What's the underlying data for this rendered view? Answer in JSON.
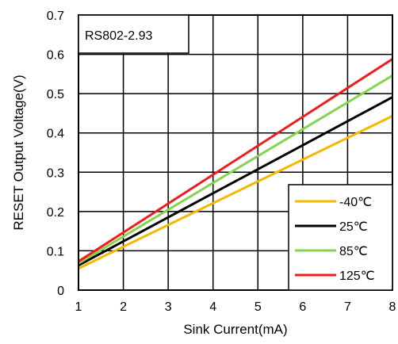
{
  "chart_data": {
    "type": "line",
    "annotation": "RS802-2.93",
    "xlabel": "Sink Current(mA)",
    "ylabel": "RESET Output Voltage(V)",
    "xlim": [
      1,
      8
    ],
    "ylim": [
      0,
      0.7
    ],
    "x_ticks": [
      "1",
      "2",
      "3",
      "4",
      "5",
      "6",
      "7",
      "8"
    ],
    "y_ticks": [
      "0",
      "0.1",
      "0.2",
      "0.3",
      "0.4",
      "0.5",
      "0.6",
      "0.7"
    ],
    "grid": true,
    "legend_position": "bottom-right",
    "series": [
      {
        "name": "-40℃",
        "color": "#f5b800",
        "x": [
          1,
          8
        ],
        "y": [
          0.055,
          0.443
        ]
      },
      {
        "name": "25℃",
        "color": "#000000",
        "x": [
          1,
          8
        ],
        "y": [
          0.063,
          0.491
        ]
      },
      {
        "name": "85℃",
        "color": "#84d44f",
        "x": [
          1,
          8
        ],
        "y": [
          0.068,
          0.546
        ]
      },
      {
        "name": "125℃",
        "color": "#ee1c1c",
        "x": [
          1,
          8
        ],
        "y": [
          0.073,
          0.588
        ]
      }
    ]
  }
}
